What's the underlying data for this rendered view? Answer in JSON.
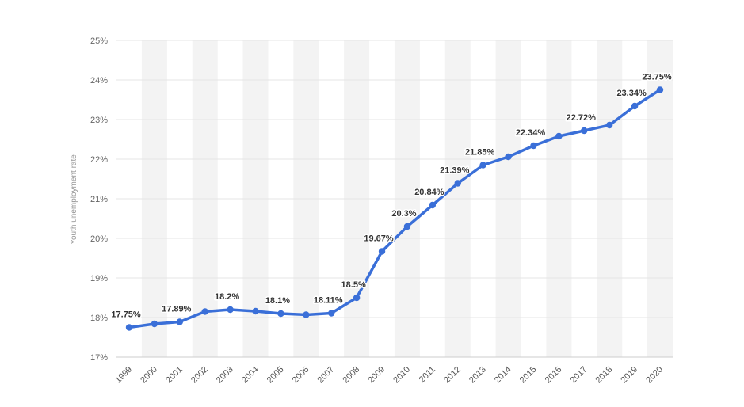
{
  "chart_data": {
    "type": "line",
    "title": "",
    "xlabel": "",
    "ylabel": "Youth unemployment rate",
    "ylim": [
      17,
      25
    ],
    "y_ticks": [
      "17%",
      "18%",
      "19%",
      "20%",
      "21%",
      "22%",
      "23%",
      "24%",
      "25%"
    ],
    "grid": true,
    "legend": "none",
    "line_color": "#3a6fd8",
    "x": [
      "1999",
      "2000",
      "2001",
      "2002",
      "2003",
      "2004",
      "2005",
      "2006",
      "2007",
      "2008",
      "2009",
      "2010",
      "2011",
      "2012",
      "2013",
      "2014",
      "2015",
      "2016",
      "2017",
      "2018",
      "2019",
      "2020"
    ],
    "series": [
      {
        "values": [
          17.75,
          17.84,
          17.89,
          18.15,
          18.2,
          18.16,
          18.1,
          18.07,
          18.11,
          18.5,
          19.67,
          20.3,
          20.84,
          21.39,
          21.85,
          22.06,
          22.34,
          22.58,
          22.72,
          22.86,
          23.34,
          23.75
        ],
        "labels": [
          "17.75%",
          "",
          "17.89%",
          "",
          "18.2%",
          "",
          "18.1%",
          "",
          "18.11%",
          "18.5%",
          "19.67%",
          "20.3%",
          "20.84%",
          "21.39%",
          "21.85%",
          "",
          "22.34%",
          "",
          "22.72%",
          "",
          "23.34%",
          "23.75%"
        ]
      }
    ]
  }
}
